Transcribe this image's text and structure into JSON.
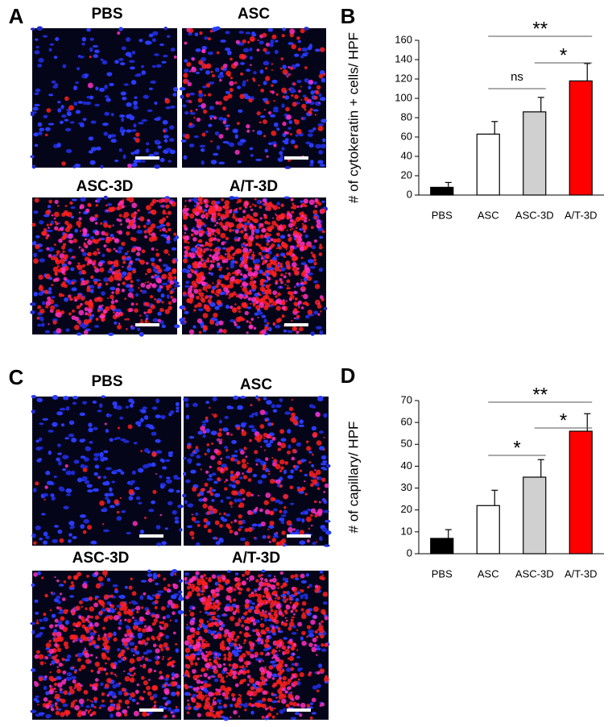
{
  "panels": [
    {
      "label": "A",
      "images": [
        "PBS",
        "ASC",
        "ASC-3D",
        "A/T-3D"
      ]
    },
    {
      "label": "C",
      "images": [
        "PBS",
        "ASC",
        "ASC-3D",
        "A/T-3D"
      ]
    }
  ],
  "chart_data": [
    {
      "type": "bar",
      "panel": "B",
      "y_label": "# of cytokeratin + cells/ HPF",
      "categories": [
        "PBS",
        "ASC",
        "ASC-3D",
        "A/T-3D"
      ],
      "values": [
        8,
        63,
        86,
        118
      ],
      "errors": [
        5,
        13,
        15,
        18
      ],
      "colors": [
        "#000000",
        "#ffffff",
        "#d0d0d0",
        "#ff0000"
      ],
      "ylim": [
        0,
        160
      ],
      "yticks": [
        0,
        20,
        40,
        60,
        80,
        100,
        120,
        140,
        160
      ],
      "annotations": [
        {
          "text": "ns",
          "from": "ASC",
          "to": "ASC-3D"
        },
        {
          "text": "*",
          "from": "ASC-3D",
          "to": "A/T-3D"
        },
        {
          "text": "**",
          "from": "ASC",
          "to": "A/T-3D"
        }
      ]
    },
    {
      "type": "bar",
      "panel": "D",
      "y_label": "# of capillary/ HPF",
      "categories": [
        "PBS",
        "ASC",
        "ASC-3D",
        "A/T-3D"
      ],
      "values": [
        7,
        22,
        35,
        56
      ],
      "errors": [
        4,
        7,
        8,
        8
      ],
      "colors": [
        "#000000",
        "#ffffff",
        "#d0d0d0",
        "#ff0000"
      ],
      "ylim": [
        0,
        70
      ],
      "yticks": [
        0,
        10,
        20,
        30,
        40,
        50,
        60,
        70
      ],
      "annotations": [
        {
          "text": "*",
          "from": "ASC",
          "to": "ASC-3D"
        },
        {
          "text": "*",
          "from": "ASC-3D",
          "to": "A/T-3D"
        },
        {
          "text": "**",
          "from": "ASC",
          "to": "A/T-3D"
        }
      ]
    }
  ]
}
